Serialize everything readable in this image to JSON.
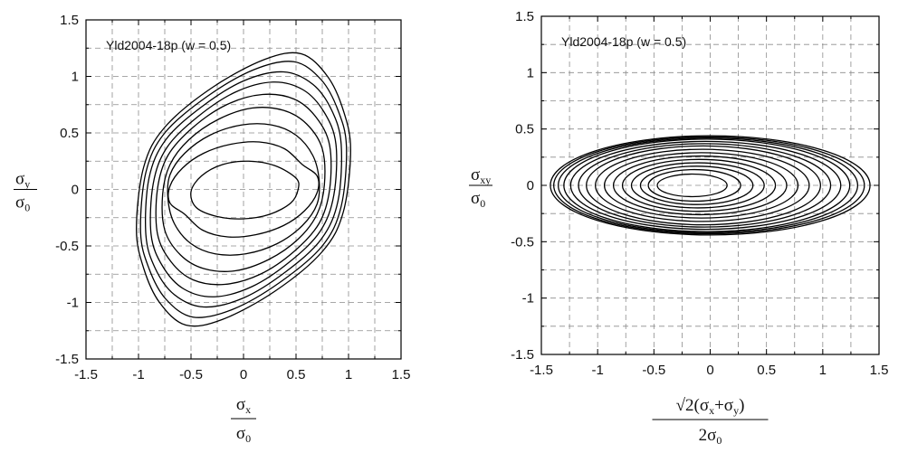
{
  "chart_data": [
    {
      "type": "line",
      "annotation": "Yld2004-18p (w = 0.5)",
      "xlabel": {
        "numerator": "σ",
        "numerator_sub": "x",
        "denominator": "σ",
        "denominator_sub": "0"
      },
      "ylabel": {
        "numerator": "σ",
        "numerator_sub": "y",
        "denominator": "σ",
        "denominator_sub": "0"
      },
      "xlim": [
        -1.5,
        1.5
      ],
      "ylim": [
        -1.5,
        1.5
      ],
      "xticks": [
        "-1.5",
        "-1",
        "-0.5",
        "0",
        "0.5",
        "1",
        "1.5"
      ],
      "yticks": [
        "-1.5",
        "-1",
        "-0.5",
        "0",
        "0.5",
        "1",
        "1.5"
      ],
      "grid": true,
      "series": [
        {
          "points": [
            [
              1.02,
              0.35
            ],
            [
              0.95,
              0.7
            ],
            [
              0.8,
              1.0
            ],
            [
              0.55,
              1.2
            ],
            [
              0.2,
              1.15
            ],
            [
              -0.3,
              0.9
            ],
            [
              -0.75,
              0.55
            ],
            [
              -0.95,
              0.2
            ],
            [
              -1.02,
              -0.35
            ],
            [
              -0.95,
              -0.7
            ],
            [
              -0.8,
              -1.0
            ],
            [
              -0.55,
              -1.2
            ],
            [
              -0.2,
              -1.15
            ],
            [
              0.3,
              -0.9
            ],
            [
              0.75,
              -0.55
            ],
            [
              0.95,
              -0.2
            ]
          ]
        },
        {
          "points": [
            [
              0.98,
              0.38
            ],
            [
              0.9,
              0.7
            ],
            [
              0.74,
              0.97
            ],
            [
              0.48,
              1.13
            ],
            [
              0.1,
              1.06
            ],
            [
              -0.35,
              0.82
            ],
            [
              -0.75,
              0.5
            ],
            [
              -0.93,
              0.15
            ],
            [
              -0.98,
              -0.38
            ],
            [
              -0.9,
              -0.7
            ],
            [
              -0.74,
              -0.97
            ],
            [
              -0.48,
              -1.13
            ],
            [
              -0.1,
              -1.06
            ],
            [
              0.35,
              -0.82
            ],
            [
              0.75,
              -0.5
            ],
            [
              0.93,
              -0.15
            ]
          ]
        },
        {
          "points": [
            [
              0.93,
              0.4
            ],
            [
              0.84,
              0.7
            ],
            [
              0.66,
              0.93
            ],
            [
              0.38,
              1.04
            ],
            [
              0.0,
              0.96
            ],
            [
              -0.4,
              0.73
            ],
            [
              -0.74,
              0.44
            ],
            [
              -0.9,
              0.1
            ],
            [
              -0.93,
              -0.4
            ],
            [
              -0.84,
              -0.7
            ],
            [
              -0.66,
              -0.93
            ],
            [
              -0.38,
              -1.04
            ],
            [
              0.0,
              -0.96
            ],
            [
              0.4,
              -0.73
            ],
            [
              0.74,
              -0.44
            ],
            [
              0.9,
              -0.1
            ]
          ]
        },
        {
          "points": [
            [
              0.88,
              0.4
            ],
            [
              0.77,
              0.68
            ],
            [
              0.57,
              0.88
            ],
            [
              0.28,
              0.95
            ],
            [
              -0.08,
              0.86
            ],
            [
              -0.44,
              0.64
            ],
            [
              -0.73,
              0.37
            ],
            [
              -0.86,
              0.05
            ],
            [
              -0.88,
              -0.4
            ],
            [
              -0.77,
              -0.68
            ],
            [
              -0.57,
              -0.88
            ],
            [
              -0.28,
              -0.95
            ],
            [
              0.08,
              -0.86
            ],
            [
              0.44,
              -0.64
            ],
            [
              0.73,
              -0.37
            ],
            [
              0.86,
              -0.05
            ]
          ]
        },
        {
          "points": [
            [
              0.82,
              0.39
            ],
            [
              0.69,
              0.64
            ],
            [
              0.48,
              0.8
            ],
            [
              0.18,
              0.84
            ],
            [
              -0.16,
              0.75
            ],
            [
              -0.48,
              0.55
            ],
            [
              -0.72,
              0.3
            ],
            [
              -0.82,
              0.0
            ],
            [
              -0.82,
              -0.39
            ],
            [
              -0.69,
              -0.64
            ],
            [
              -0.48,
              -0.8
            ],
            [
              -0.18,
              -0.84
            ],
            [
              0.16,
              -0.75
            ],
            [
              0.48,
              -0.55
            ],
            [
              0.72,
              -0.3
            ],
            [
              0.82,
              0.0
            ]
          ]
        },
        {
          "points": [
            [
              0.75,
              0.36
            ],
            [
              0.6,
              0.58
            ],
            [
              0.38,
              0.7
            ],
            [
              0.08,
              0.72
            ],
            [
              -0.24,
              0.62
            ],
            [
              -0.52,
              0.44
            ],
            [
              -0.7,
              0.22
            ],
            [
              -0.77,
              -0.04
            ],
            [
              -0.75,
              -0.36
            ],
            [
              -0.6,
              -0.58
            ],
            [
              -0.38,
              -0.7
            ],
            [
              -0.08,
              -0.72
            ],
            [
              0.24,
              -0.62
            ],
            [
              0.52,
              -0.44
            ],
            [
              0.7,
              -0.22
            ],
            [
              0.77,
              0.04
            ]
          ]
        },
        {
          "points": [
            [
              0.66,
              0.3
            ],
            [
              0.5,
              0.48
            ],
            [
              0.27,
              0.57
            ],
            [
              -0.02,
              0.57
            ],
            [
              -0.32,
              0.48
            ],
            [
              -0.56,
              0.32
            ],
            [
              -0.7,
              0.13
            ],
            [
              -0.72,
              -0.08
            ],
            [
              -0.66,
              -0.3
            ],
            [
              -0.5,
              -0.48
            ],
            [
              -0.27,
              -0.57
            ],
            [
              0.02,
              -0.57
            ],
            [
              0.32,
              -0.48
            ],
            [
              0.56,
              -0.32
            ],
            [
              0.7,
              -0.13
            ],
            [
              0.72,
              0.08
            ]
          ]
        },
        {
          "points": [
            [
              0.56,
              0.22
            ],
            [
              0.39,
              0.36
            ],
            [
              0.15,
              0.42
            ],
            [
              -0.12,
              0.4
            ],
            [
              -0.38,
              0.32
            ],
            [
              -0.58,
              0.19
            ],
            [
              -0.7,
              0.03
            ],
            [
              -0.7,
              -0.12
            ],
            [
              -0.56,
              -0.22
            ],
            [
              -0.39,
              -0.36
            ],
            [
              -0.15,
              -0.42
            ],
            [
              0.12,
              -0.4
            ],
            [
              0.38,
              -0.32
            ],
            [
              0.58,
              -0.19
            ],
            [
              0.7,
              -0.03
            ],
            [
              0.7,
              0.12
            ]
          ]
        },
        {
          "points": [
            [
              0.5,
              0.1
            ],
            [
              0.3,
              0.21
            ],
            [
              0.05,
              0.25
            ],
            [
              -0.2,
              0.22
            ],
            [
              -0.4,
              0.12
            ],
            [
              -0.5,
              -0.02
            ],
            [
              -0.45,
              -0.16
            ],
            [
              -0.25,
              -0.24
            ],
            [
              0.0,
              -0.26
            ],
            [
              0.25,
              -0.22
            ],
            [
              0.45,
              -0.12
            ],
            [
              0.52,
              0.0
            ]
          ]
        }
      ]
    },
    {
      "type": "line",
      "annotation": "Yld2004-18p (w = 0.5)",
      "xlabel": {
        "prefix": "√2(σ",
        "sub1": "x",
        "mid": "+σ",
        "sub2": "y",
        "suffix": ")",
        "denominator": "2σ",
        "denominator_sub": "0"
      },
      "ylabel": {
        "numerator": "σ",
        "numerator_sub": "xy",
        "denominator": "σ",
        "denominator_sub": "0"
      },
      "xlim": [
        -1.5,
        1.5
      ],
      "ylim": [
        -1.5,
        1.5
      ],
      "xticks": [
        "-1.5",
        "-1",
        "-0.5",
        "0",
        "0.5",
        "1",
        "1.5"
      ],
      "yticks": [
        "-1.5",
        "-1",
        "-0.5",
        "0",
        "0.5",
        "1",
        "1.5"
      ],
      "grid": true,
      "series": [
        {
          "ellipse": {
            "cx": 0.0,
            "rx": 1.42,
            "ry": 0.44
          }
        },
        {
          "ellipse": {
            "cx": -0.01,
            "rx": 1.38,
            "ry": 0.43
          }
        },
        {
          "ellipse": {
            "cx": -0.02,
            "rx": 1.33,
            "ry": 0.42
          }
        },
        {
          "ellipse": {
            "cx": -0.03,
            "rx": 1.27,
            "ry": 0.41
          }
        },
        {
          "ellipse": {
            "cx": -0.04,
            "rx": 1.2,
            "ry": 0.39
          }
        },
        {
          "ellipse": {
            "cx": -0.05,
            "rx": 1.12,
            "ry": 0.37
          }
        },
        {
          "ellipse": {
            "cx": -0.06,
            "rx": 1.04,
            "ry": 0.35
          }
        },
        {
          "ellipse": {
            "cx": -0.07,
            "rx": 0.95,
            "ry": 0.32
          }
        },
        {
          "ellipse": {
            "cx": -0.08,
            "rx": 0.86,
            "ry": 0.29
          }
        },
        {
          "ellipse": {
            "cx": -0.09,
            "rx": 0.77,
            "ry": 0.26
          }
        },
        {
          "ellipse": {
            "cx": -0.1,
            "rx": 0.68,
            "ry": 0.23
          }
        },
        {
          "ellipse": {
            "cx": -0.11,
            "rx": 0.59,
            "ry": 0.2
          }
        },
        {
          "ellipse": {
            "cx": -0.12,
            "rx": 0.5,
            "ry": 0.17
          }
        },
        {
          "ellipse": {
            "cx": -0.14,
            "rx": 0.41,
            "ry": 0.14
          }
        },
        {
          "ellipse": {
            "cx": -0.16,
            "rx": 0.31,
            "ry": 0.1
          }
        }
      ]
    }
  ]
}
